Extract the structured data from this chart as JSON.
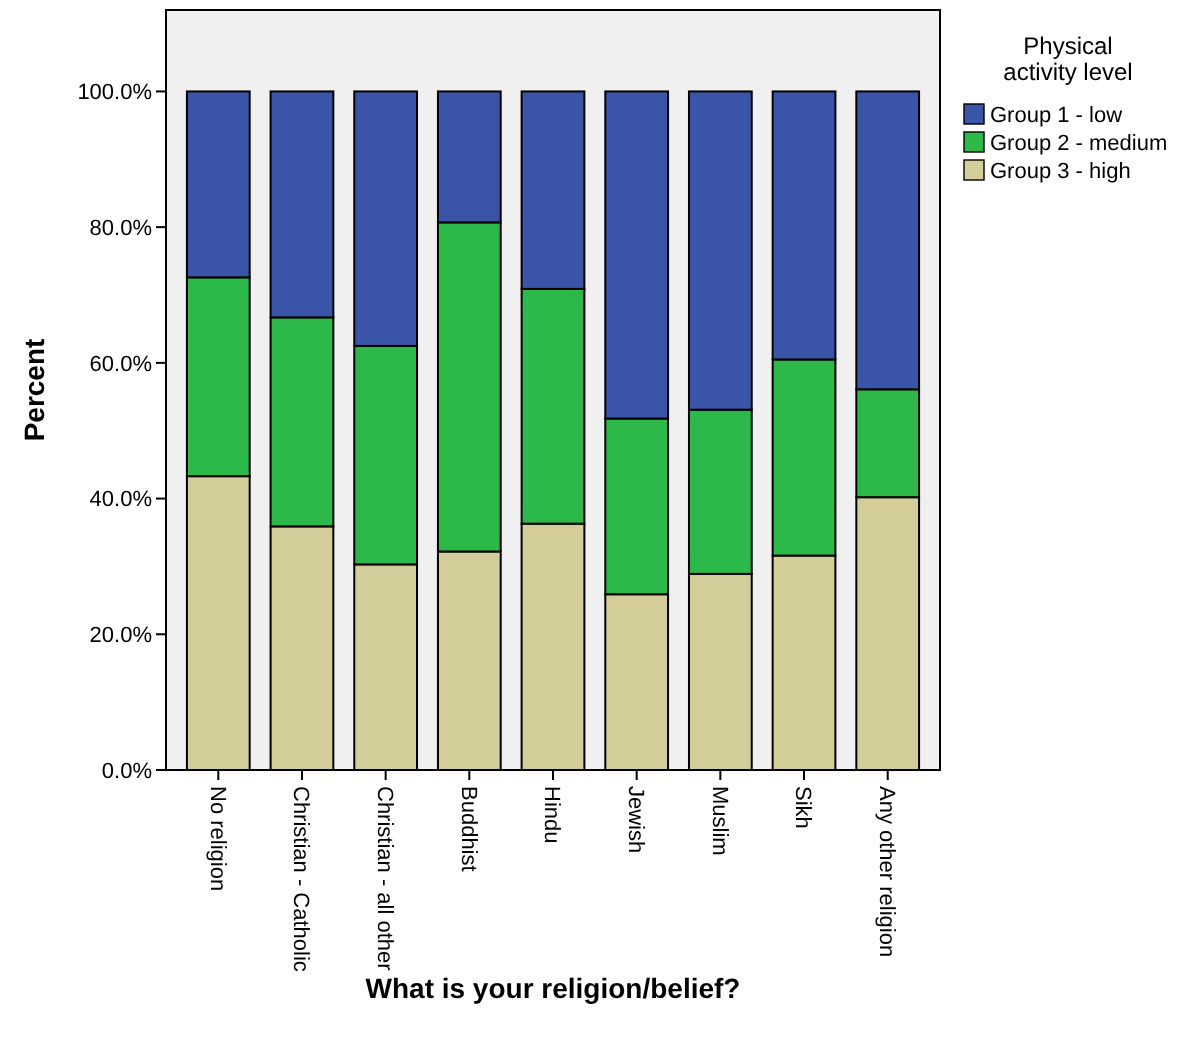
{
  "chart_data": {
    "type": "bar",
    "stacked": true,
    "xlabel": "What is your religion/belief?",
    "ylabel": "Percent",
    "legend_title": "Physical activity level",
    "legend": "top right",
    "categories": [
      "No religion",
      "Christian - Catholic",
      "Christian - all other",
      "Buddhist",
      "Hindu",
      "Jewish",
      "Muslim",
      "Sikh",
      "Any other religion"
    ],
    "series": [
      {
        "name": "Group 3 - high",
        "color": "#d3ce99",
        "values": [
          43.3,
          35.9,
          30.3,
          32.2,
          36.3,
          25.9,
          28.9,
          31.6,
          40.2
        ]
      },
      {
        "name": "Group 2 - medium",
        "color": "#2db84a",
        "values": [
          29.3,
          30.8,
          32.2,
          48.5,
          34.6,
          25.9,
          24.2,
          28.9,
          15.9
        ]
      },
      {
        "name": "Group 1 - low",
        "color": "#3a55a8",
        "values": [
          27.4,
          33.3,
          37.5,
          19.3,
          29.1,
          48.2,
          46.9,
          39.5,
          43.9
        ]
      }
    ],
    "ylim": [
      0,
      112
    ],
    "yticks": [
      {
        "value": 0,
        "label": "0.0%"
      },
      {
        "value": 20,
        "label": "20.0%"
      },
      {
        "value": 40,
        "label": "40.0%"
      },
      {
        "value": 60,
        "label": "60.0%"
      },
      {
        "value": 80,
        "label": "80.0%"
      },
      {
        "value": 100,
        "label": "100.0%"
      }
    ],
    "grid": false
  }
}
